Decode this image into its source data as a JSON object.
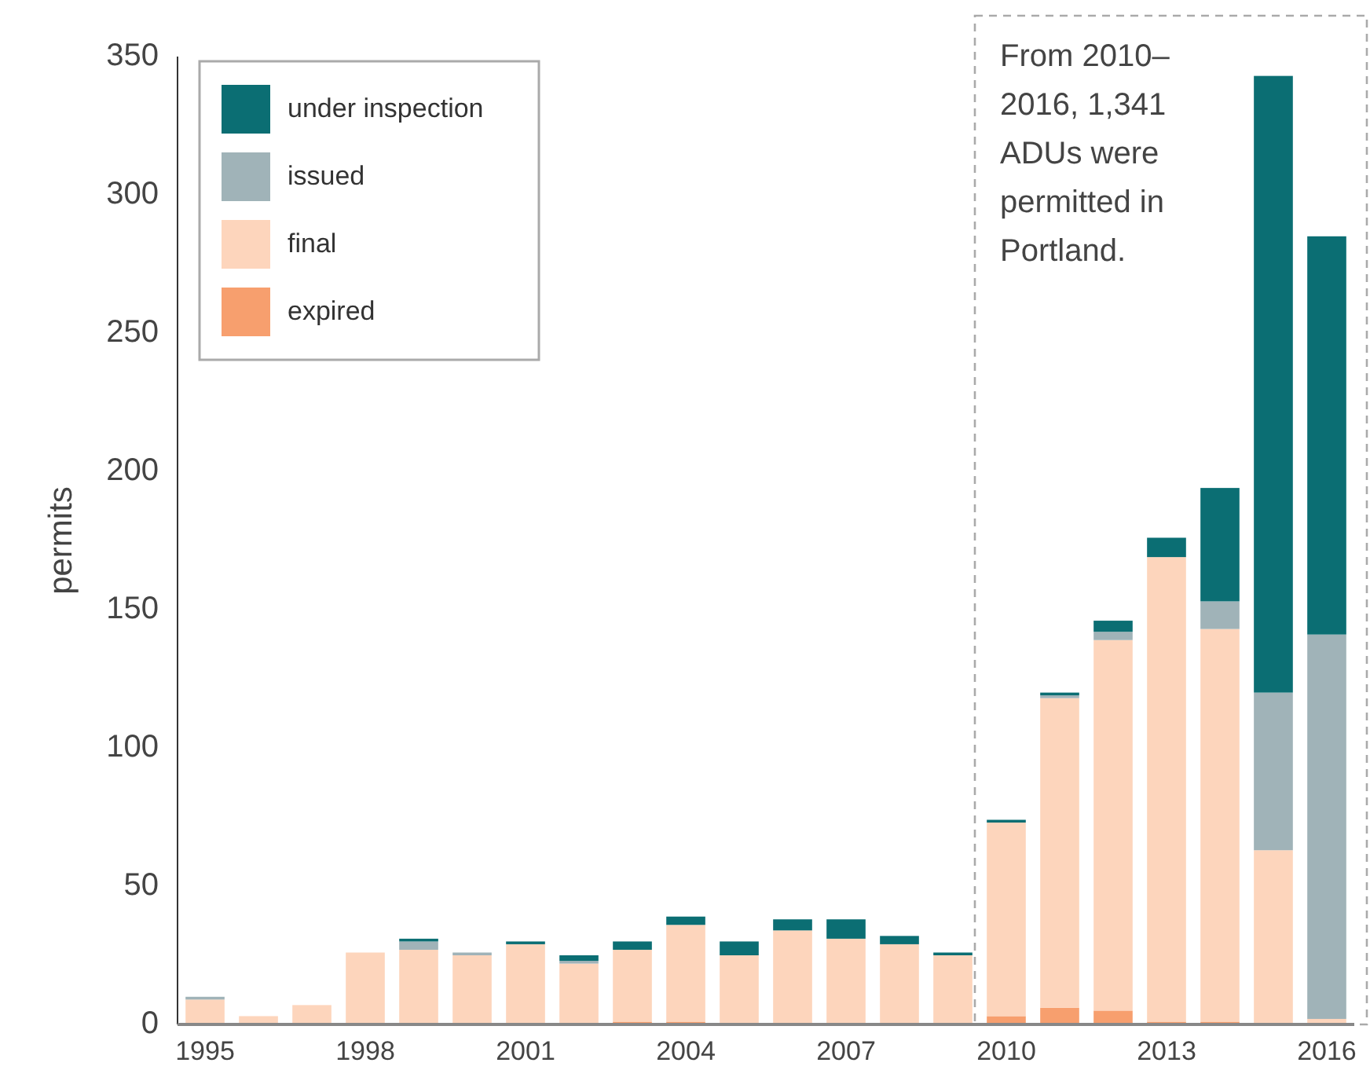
{
  "chart_data": {
    "type": "bar",
    "stacked": true,
    "ylabel": "permits",
    "categories": [
      "1995",
      null,
      null,
      "1998",
      null,
      null,
      "2001",
      null,
      null,
      "2004",
      null,
      null,
      "2007",
      null,
      null,
      "2010",
      null,
      null,
      "2013",
      null,
      null,
      "2016"
    ],
    "series": [
      {
        "name": "expired",
        "color": "#f79f6e",
        "values": [
          0,
          0,
          0,
          0,
          0,
          0,
          0,
          0,
          1,
          1,
          0,
          0,
          0,
          0,
          0,
          3,
          6,
          5,
          1,
          1,
          0,
          0
        ]
      },
      {
        "name": "final",
        "color": "#fdd5bc",
        "values": [
          9,
          3,
          7,
          26,
          27,
          25,
          29,
          22,
          26,
          35,
          25,
          34,
          31,
          29,
          25,
          70,
          112,
          134,
          168,
          142,
          63,
          2
        ]
      },
      {
        "name": "issued",
        "color": "#a0b3b8",
        "values": [
          1,
          0,
          0,
          0,
          3,
          1,
          0,
          1,
          0,
          0,
          0,
          0,
          0,
          0,
          0,
          0,
          1,
          3,
          0,
          10,
          57,
          139
        ]
      },
      {
        "name": "under inspection",
        "color": "#0b6e73",
        "values": [
          0,
          0,
          0,
          0,
          1,
          0,
          1,
          2,
          3,
          3,
          5,
          4,
          7,
          3,
          1,
          1,
          1,
          4,
          7,
          41,
          223,
          144
        ]
      }
    ],
    "ylim": [
      0,
      350
    ],
    "yticks": [
      0,
      50,
      100,
      150,
      200,
      250,
      300,
      350
    ],
    "grid": false,
    "legend": "top left",
    "annotations": [
      "From 2010–2016, 1,341 ADUs were permitted in Portland."
    ]
  }
}
